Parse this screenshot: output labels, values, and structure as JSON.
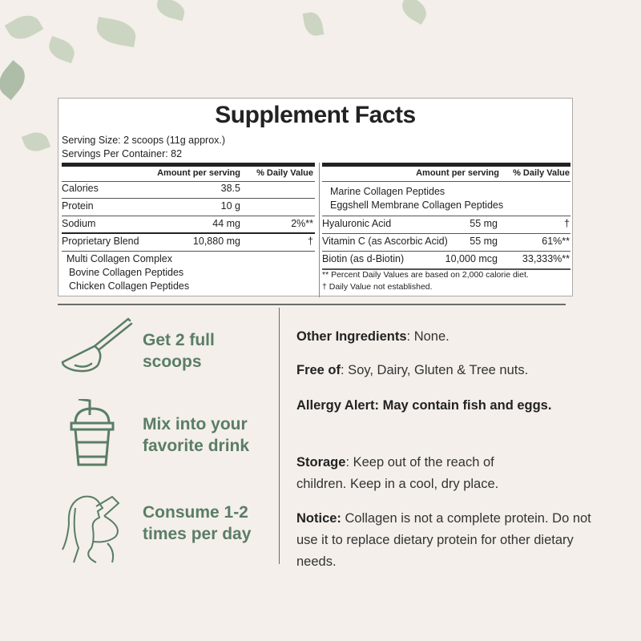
{
  "facts": {
    "title": "Supplement Facts",
    "serving_size": "Serving Size: 2 scoops (11g approx.)",
    "servings": "Servings Per Container: 82",
    "amount_header": "Amount per serving",
    "dv_header": "% Daily Value",
    "left_rows": [
      {
        "name": "Calories",
        "amount": "38.5",
        "dv": ""
      },
      {
        "name": "Protein",
        "amount": "10 g",
        "dv": ""
      },
      {
        "name": "Sodium",
        "amount": "44 mg",
        "dv": "2%**"
      },
      {
        "name": "Proprietary Blend",
        "amount": "10,880 mg",
        "dv": "†"
      }
    ],
    "blend_items": [
      "Multi Collagen Complex",
      "Bovine Collagen Peptides",
      "Chicken Collagen Peptides"
    ],
    "right_blend_items": [
      "Marine Collagen Peptides",
      "Eggshell Membrane Collagen Peptides"
    ],
    "right_rows": [
      {
        "name": "Hyaluronic Acid",
        "amount": "55 mg",
        "dv": "†"
      },
      {
        "name": "Vitamin C (as Ascorbic Acid)",
        "amount": "55 mg",
        "dv": "61%**"
      },
      {
        "name": "Biotin (as d-Biotin)",
        "amount": "10,000 mcg",
        "dv": "33,333%**"
      }
    ],
    "footnote1": "** Percent Daily Values are based on 2,000 calorie diet.",
    "footnote2": "† Daily Value not established."
  },
  "steps": [
    {
      "icon": "scoop-icon",
      "line1": "Get 2 full",
      "line2": "scoops"
    },
    {
      "icon": "cup-icon",
      "line1": "Mix into your",
      "line2": "favorite drink"
    },
    {
      "icon": "drinking-woman-icon",
      "line1": "Consume 1-2",
      "line2": "times per day"
    }
  ],
  "info": {
    "other_label": "Other Ingredients",
    "other_text": ": None.",
    "free_label": "Free of",
    "free_text": ": Soy, Dairy, Gluten & Tree nuts.",
    "allergy_label": "Allergy Alert: May contain fish and eggs.",
    "storage_label": "Storage",
    "storage_text": ": Keep out of the reach of children. Keep in a cool, dry place.",
    "notice_label": "Notice:",
    "notice_text": " Collagen is not a complete protein. Do not use it to replace dietary protein for other dietary needs."
  },
  "colors": {
    "accent": "#5a7d66",
    "background": "#f4efea"
  }
}
